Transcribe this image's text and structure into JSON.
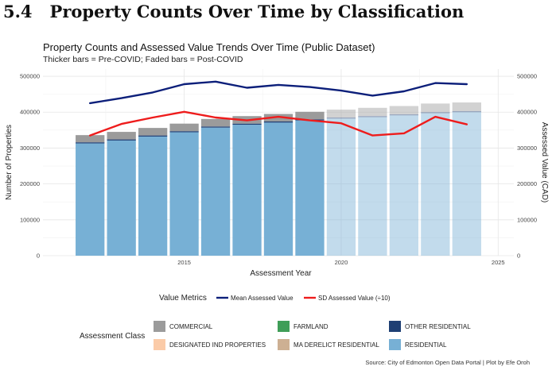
{
  "section": {
    "number": "5.4",
    "title": "Property Counts Over Time by Classification"
  },
  "chart_data": {
    "type": "bar",
    "title": "Property Counts and Assessed Value Trends Over Time (Public Dataset)",
    "subtitle": "Thicker bars = Pre-COVID; Faded bars = Post-COVID",
    "xlabel": "Assessment Year",
    "ylabel": "Number of Properties",
    "y2label": "Assessed Value (CAD)",
    "x": [
      2012,
      2013,
      2014,
      2015,
      2016,
      2017,
      2018,
      2019,
      2020,
      2021,
      2022,
      2023,
      2024
    ],
    "xlim": [
      2010.5,
      2025.5
    ],
    "xticks": [
      2015,
      2020,
      2025
    ],
    "ylim": [
      0,
      520000
    ],
    "yticks": [
      0,
      100000,
      200000,
      300000,
      400000,
      500000
    ],
    "ytick_labels": [
      "0",
      "100000",
      "200000",
      "300000",
      "400000",
      "500000"
    ],
    "y2ticks": [
      0,
      100000,
      200000,
      300000,
      400000,
      500000
    ],
    "y2tick_labels": [
      "0",
      "100000",
      "200000",
      "300000",
      "400000",
      "500000"
    ],
    "grid": true,
    "covid_split_year": 2020,
    "stack_series": [
      {
        "name": "RESIDENTIAL",
        "color": "#77b0d5",
        "values": [
          313000,
          321000,
          332000,
          344000,
          357000,
          365000,
          371000,
          377000,
          382000,
          386000,
          391000,
          397000,
          400000
        ]
      },
      {
        "name": "OTHER RESIDENTIAL",
        "color": "#1f3f74",
        "values": [
          3000,
          3000,
          3000,
          3000,
          3000,
          3000,
          3000,
          3000,
          3000,
          3000,
          3000,
          3000,
          3000
        ]
      },
      {
        "name": "COMMERCIAL",
        "color": "#9b9b9b",
        "values": [
          20000,
          21000,
          21000,
          21000,
          21000,
          21000,
          21000,
          21000,
          22000,
          23000,
          23000,
          24000,
          24000
        ]
      }
    ],
    "line_series": [
      {
        "name": "Mean Assessed Value",
        "color": "#0c1f7a",
        "values": [
          425000,
          439000,
          455000,
          478000,
          485000,
          468000,
          476000,
          470000,
          460000,
          446000,
          458000,
          481000,
          478000
        ]
      },
      {
        "name": "SD Assessed Value (÷10)",
        "color": "#ee1c1c",
        "values": [
          335000,
          367000,
          385000,
          401000,
          385000,
          377000,
          387000,
          377000,
          369000,
          335000,
          341000,
          387000,
          366000
        ]
      }
    ],
    "line_legend": {
      "title": "Value Metrics",
      "items": [
        {
          "label": "Mean Assessed Value",
          "color": "#0c1f7a"
        },
        {
          "label": "SD Assessed Value (÷10)",
          "color": "#ee1c1c"
        }
      ]
    },
    "class_legend": {
      "title": "Assessment Class",
      "items": [
        {
          "label": "COMMERCIAL",
          "color": "#9b9b9b"
        },
        {
          "label": "FARMLAND",
          "color": "#3f9e58"
        },
        {
          "label": "OTHER RESIDENTIAL",
          "color": "#1f3f74"
        },
        {
          "label": "DESIGNATED IND PROPERTIES",
          "color": "#fbcba8"
        },
        {
          "label": "MA DERELICT RESIDENTIAL",
          "color": "#cdb093"
        },
        {
          "label": "RESIDENTIAL",
          "color": "#77b0d5"
        }
      ]
    },
    "legend_position": "bottom",
    "caption": "Source: City of Edmonton Open Data Portal | Plot by Efe Oroh"
  }
}
